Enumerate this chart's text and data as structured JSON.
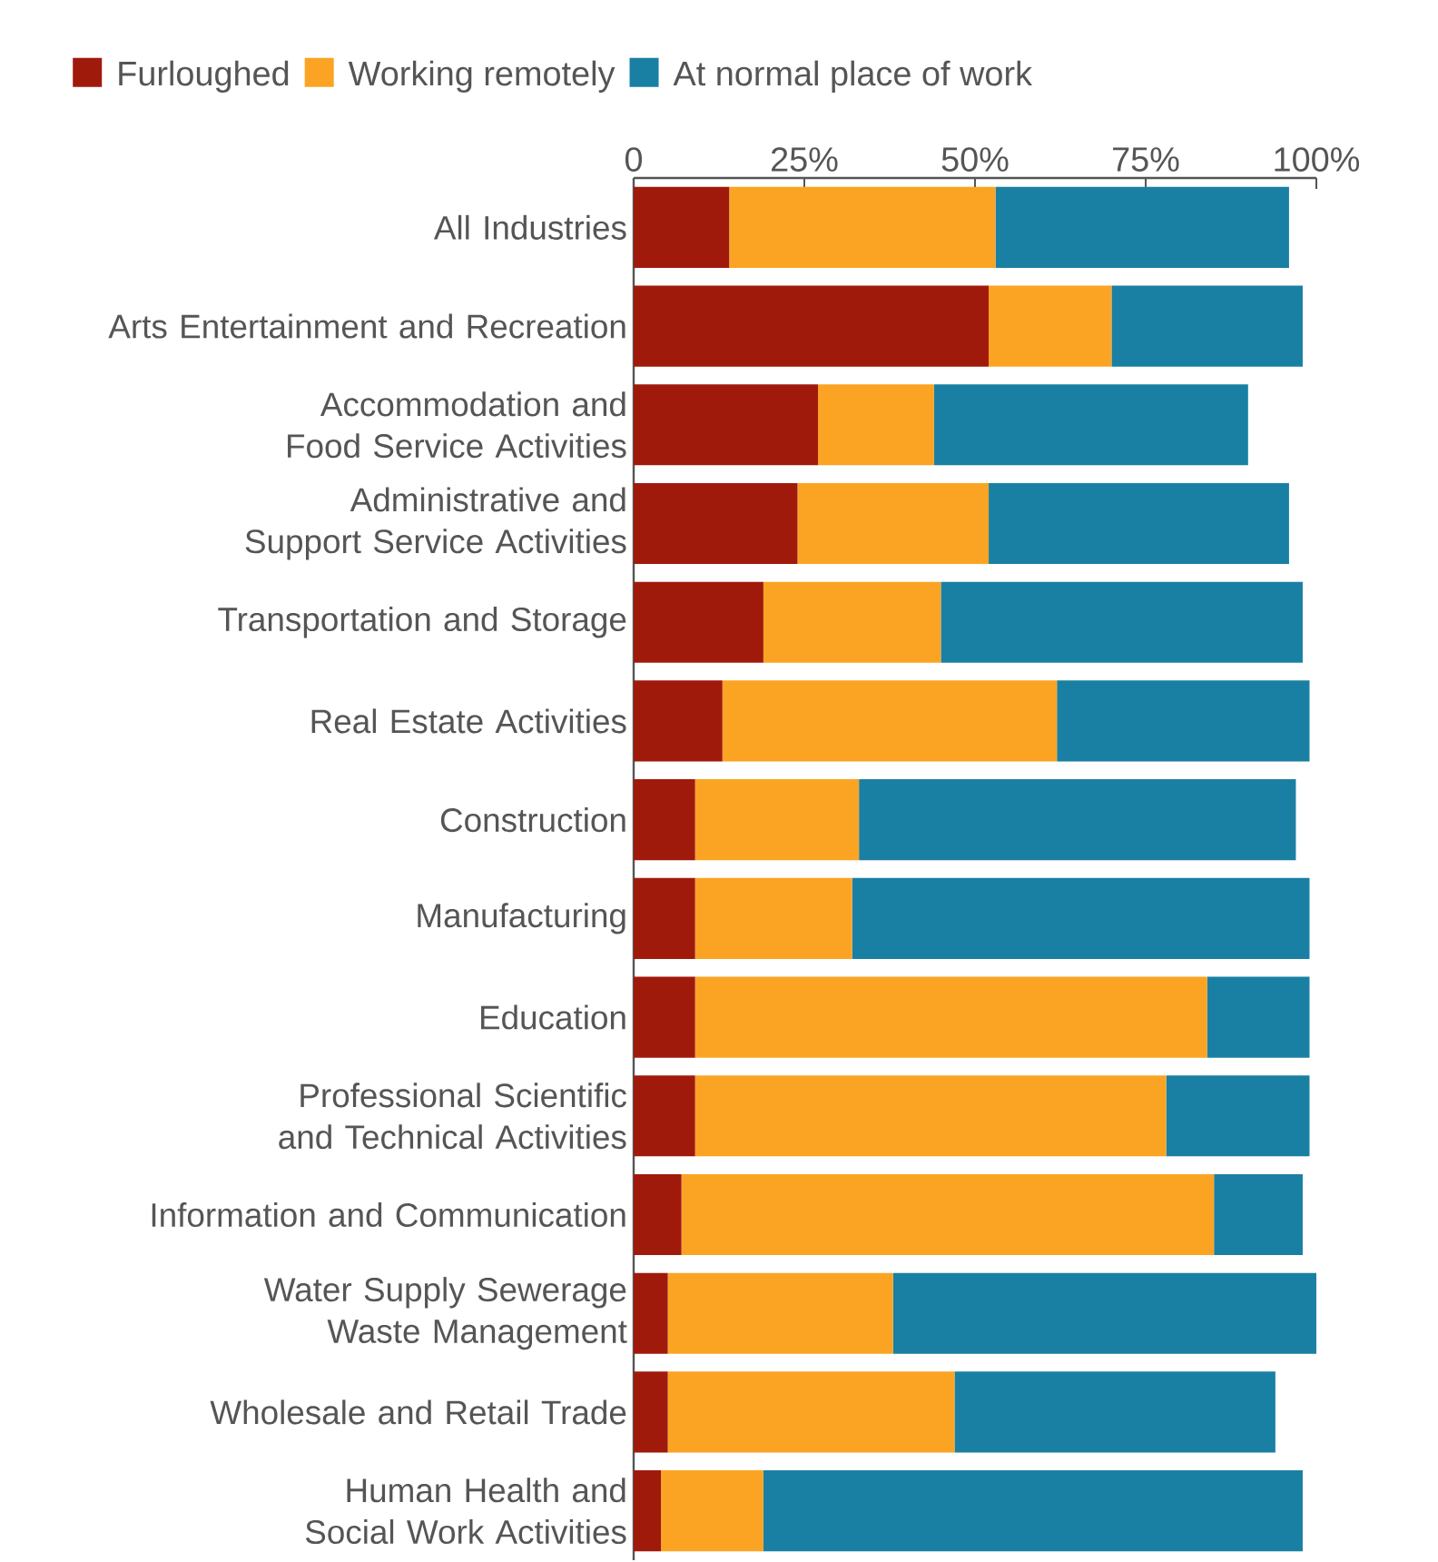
{
  "chart_data": {
    "type": "bar",
    "orientation": "horizontal",
    "stacked": true,
    "legend": "top",
    "categories": [
      "All Industries",
      "Arts Entertainment and Recreation",
      "Accommodation and Food Service Activities",
      "Administrative and Support Service Activities",
      "Transportation and Storage",
      "Real Estate Activities",
      "Construction",
      "Manufacturing",
      "Education",
      "Professional Scientific and Technical Activities",
      "Information and Communication",
      "Water Supply Sewerage Waste Management",
      "Wholesale and Retail Trade",
      "Human Health and Social Work Activities"
    ],
    "series": [
      {
        "name": "Furloughed",
        "color": "#a01a0c",
        "values": [
          14,
          52,
          27,
          24,
          19,
          13,
          9,
          9,
          9,
          9,
          7,
          5,
          5,
          4
        ]
      },
      {
        "name": "Working remotely",
        "color": "#fba423",
        "values": [
          39,
          18,
          17,
          28,
          26,
          49,
          24,
          23,
          75,
          69,
          78,
          33,
          42,
          15
        ]
      },
      {
        "name": "At normal place of work",
        "color": "#1a80a3",
        "values": [
          43,
          28,
          46,
          44,
          53,
          37,
          64,
          67,
          15,
          21,
          13,
          62,
          47,
          79
        ]
      }
    ],
    "xlim": [
      0,
      100
    ],
    "xticks": [
      0,
      {
        "value": 25,
        "label": "25%"
      },
      {
        "value": 50,
        "label": "50%"
      },
      {
        "value": 75,
        "label": "75%"
      },
      {
        "value": 100,
        "label": "100%"
      }
    ]
  }
}
